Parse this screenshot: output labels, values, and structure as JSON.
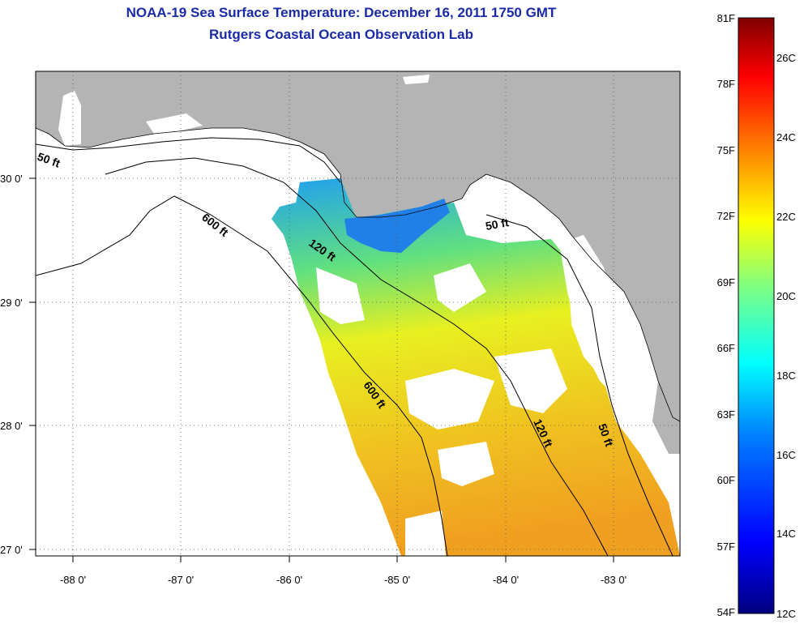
{
  "title": "NOAA-19 Sea Surface Temperature:  December 16, 2011 1750 GMT",
  "subtitle": "Rutgers Coastal Ocean Observation Lab",
  "map": {
    "lon_ticks": [
      "-88 0'",
      "-87 0'",
      "-86 0'",
      "-85 0'",
      "-84 0'",
      "-83 0'"
    ],
    "lat_ticks": [
      "30 0'",
      "29 0'",
      "28 0'",
      "27 0'"
    ],
    "contour_labels": [
      "50 ft",
      "600 ft",
      "120 ft",
      "50 ft",
      "600 ft",
      "120 ft",
      "50 ft"
    ]
  },
  "colorbar": {
    "f_labels": [
      "81F",
      "78F",
      "75F",
      "72F",
      "69F",
      "66F",
      "63F",
      "60F",
      "57F",
      "54F"
    ],
    "c_labels": [
      "26C",
      "24C",
      "22C",
      "20C",
      "18C",
      "16C",
      "14C",
      "12C"
    ],
    "gradient": [
      "#000080",
      "#0000ff",
      "#0080ff",
      "#00ffff",
      "#80ff80",
      "#ffff00",
      "#ff8000",
      "#ff0000",
      "#800000"
    ]
  },
  "colors": {
    "title": "#1a2aa8",
    "land": "#b4b4b4",
    "nodata": "#ffffff"
  }
}
